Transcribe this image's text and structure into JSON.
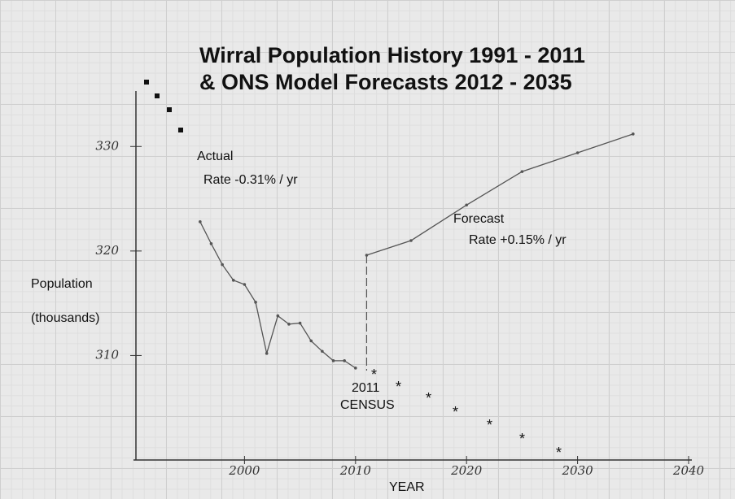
{
  "chart_data": {
    "type": "line",
    "title": [
      "Wirral Population History 1991 - 2011",
      "& ONS Model Forecasts   2012 - 2035"
    ],
    "xlabel": "YEAR",
    "ylabel": [
      "Population",
      "(thousands)"
    ],
    "annotations": [
      "Actual",
      "Rate -0.31% / yr",
      "Forecast",
      "Rate +0.15% / yr",
      "2011",
      "CENSUS"
    ],
    "xlim": [
      1990,
      2040
    ],
    "xticks": [
      2000,
      2010,
      2020,
      2030,
      2040
    ],
    "ylim": [
      300,
      335
    ],
    "yticks": [
      310,
      320,
      330
    ],
    "series": [
      {
        "name": "Actual",
        "color": "#555555",
        "x": [
          1996,
          1997,
          1998,
          1999,
          2000,
          2001,
          2002,
          2003,
          2004,
          2005,
          2006,
          2007,
          2008,
          2009,
          2010
        ],
        "values": [
          322.8,
          320.7,
          318.7,
          317.2,
          316.8,
          315.1,
          310.2,
          313.8,
          313.0,
          313.1,
          311.4,
          310.4,
          309.5,
          309.5,
          308.8
        ]
      },
      {
        "name": "Forecast",
        "color": "#555555",
        "x": [
          2011,
          2015,
          2020,
          2025,
          2030,
          2035
        ],
        "values": [
          319.6,
          321.0,
          324.4,
          327.6,
          329.4,
          331.2
        ]
      }
    ]
  }
}
